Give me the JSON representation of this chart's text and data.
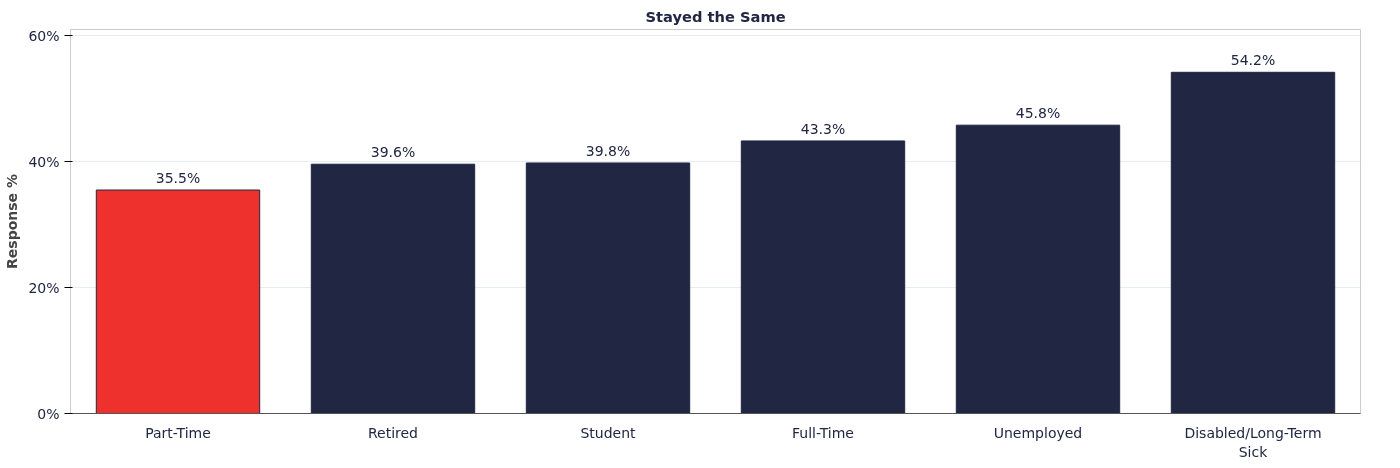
{
  "chart_data": {
    "type": "bar",
    "title": "Stayed the Same",
    "ylabel": "Response %",
    "categories": [
      "Part-Time",
      "Retired",
      "Student",
      "Full-Time",
      "Unemployed",
      "Disabled/Long-Term Sick"
    ],
    "values": [
      35.5,
      39.6,
      39.8,
      43.3,
      45.8,
      54.2
    ],
    "colors": [
      "#ee312c",
      "#212743",
      "#212743",
      "#212743",
      "#212743",
      "#212743"
    ],
    "value_labels": [
      "35.5%",
      "39.6%",
      "39.8%",
      "43.3%",
      "45.8%",
      "54.2%"
    ],
    "ylim": [
      0,
      61
    ],
    "yticks": [
      {
        "value": 0,
        "label": "0%"
      },
      {
        "value": 20,
        "label": "20%"
      },
      {
        "value": 40,
        "label": "40%"
      },
      {
        "value": 60,
        "label": "60%"
      }
    ],
    "grid": "y"
  }
}
